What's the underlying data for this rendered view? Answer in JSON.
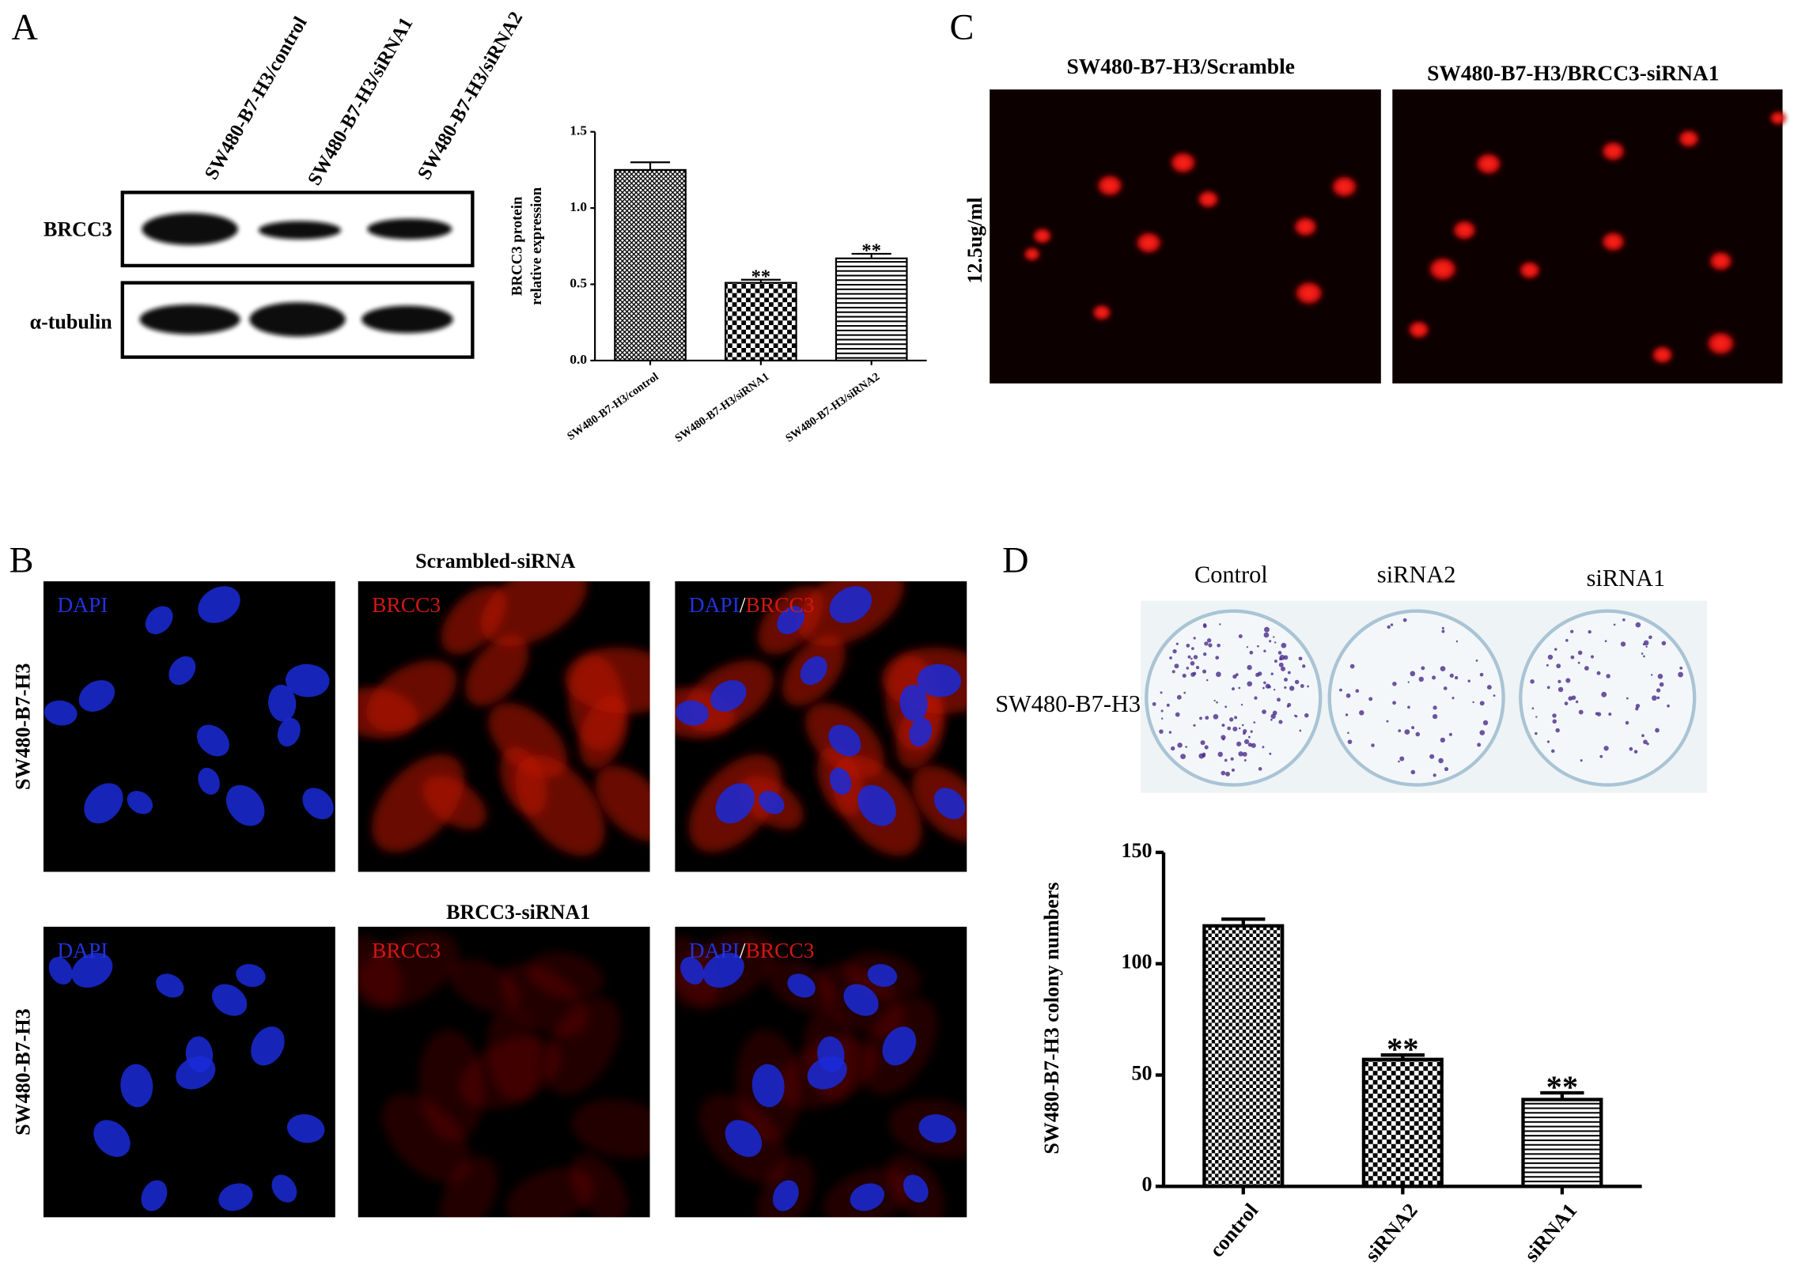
{
  "panel_labels": [
    "A",
    "B",
    "C",
    "D"
  ],
  "western_blot": {
    "lanes": [
      "SW480-B7-H3/control",
      "SW480-B7-H3/siRNA1",
      "SW480-B7-H3/siRNA2"
    ],
    "proteins": [
      "BRCC3",
      "α-tubulin"
    ]
  },
  "comet_assay": {
    "conditions": [
      "SW480-B7-H3/Scramble",
      "SW480-B7-H3/BRCC3-siRNA1"
    ],
    "dose": "12.5ug/ml"
  },
  "immunofluorescence": {
    "groups": [
      "Scrambled-siRNA",
      "BRCC3-siRNA1"
    ],
    "cell_line": "SW480-B7-H3",
    "channels": [
      "DAPI",
      "BRCC3"
    ],
    "merge_separator": "/"
  },
  "colony_formation": {
    "conditions": [
      "Control",
      "siRNA2",
      "siRNA1"
    ],
    "cell_line": "SW480-B7-H3"
  },
  "chart_data": [
    {
      "type": "bar",
      "ylabel": [
        "BRCC3 protein",
        "relative expression"
      ],
      "categories": [
        "SW480-B7-H3/control",
        "SW480-B7-H3/siRNA1",
        "SW480-B7-H3/siRNA2"
      ],
      "values": [
        1.25,
        0.51,
        0.67
      ],
      "errors": [
        0.05,
        0.02,
        0.03
      ],
      "fills": [
        "crosshatch",
        "checker",
        "hlines"
      ],
      "color": "#000000",
      "ylim": [
        0,
        1.5
      ],
      "yticks": [
        {
          "value": 0,
          "label": "0.0"
        },
        0.5,
        {
          "value": 1,
          "label": "1.0"
        },
        1.5
      ],
      "annotations": [
        {
          "category": "SW480-B7-H3/siRNA1",
          "text": "**"
        },
        {
          "category": "SW480-B7-H3/siRNA2",
          "text": "**"
        }
      ]
    },
    {
      "type": "bar",
      "ylabel": "SW480-B7-H3 colony numbers",
      "categories": [
        "control",
        "siRNA2",
        "siRNA1"
      ],
      "values": [
        117,
        57,
        39
      ],
      "errors": [
        3,
        2,
        3
      ],
      "fills": [
        "checker-fine",
        "checker",
        "hlines"
      ],
      "color": "#000000",
      "ylim": [
        0,
        150
      ],
      "yticks": [
        0,
        50,
        100,
        150
      ],
      "annotations": [
        {
          "category": "siRNA2",
          "text": "**"
        },
        {
          "category": "siRNA1",
          "text": "**"
        }
      ]
    }
  ]
}
